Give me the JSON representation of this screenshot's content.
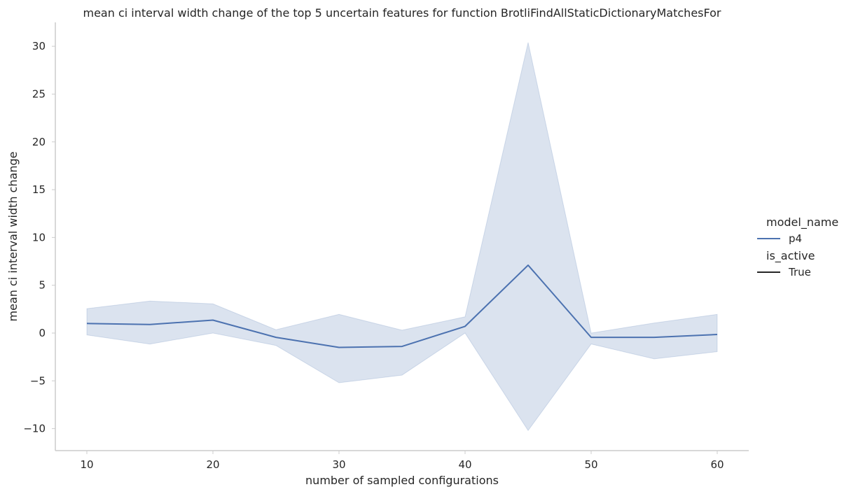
{
  "chart_data": {
    "type": "line",
    "title": "mean ci interval width change of the top 5 uncertain features for function BrotliFindAllStaticDictionaryMatchesFor",
    "xlabel": "number of sampled configurations",
    "ylabel": "mean ci interval width change",
    "xlim": [
      7.5,
      62.5
    ],
    "ylim": [
      -12.3,
      32.5
    ],
    "x_ticks": [
      10,
      20,
      30,
      40,
      50,
      60
    ],
    "y_ticks": [
      -10,
      -5,
      0,
      5,
      10,
      15,
      20,
      25,
      30
    ],
    "y_tick_labels": [
      "−10",
      "−5",
      "0",
      "5",
      "10",
      "15",
      "20",
      "25",
      "30"
    ],
    "grid": false,
    "legend_placement": "right",
    "series": [
      {
        "name": "p4",
        "color": "#4c72b0",
        "x": [
          10,
          15,
          20,
          25,
          30,
          35,
          40,
          45,
          50,
          55,
          60
        ],
        "y": [
          1.0,
          0.9,
          1.35,
          -0.45,
          -1.5,
          -1.4,
          0.7,
          7.1,
          -0.45,
          -0.45,
          -0.15
        ],
        "ci_lower": [
          -0.2,
          -1.15,
          0.0,
          -1.3,
          -5.2,
          -4.4,
          0.0,
          -10.2,
          -1.15,
          -2.7,
          -1.95
        ],
        "ci_upper": [
          2.55,
          3.35,
          3.05,
          0.35,
          1.95,
          0.3,
          1.7,
          30.4,
          0.0,
          1.05,
          1.95
        ]
      }
    ],
    "legend": {
      "hue_title": "model_name",
      "hue_entries": [
        {
          "label": "p4",
          "color": "#4c72b0"
        }
      ],
      "style_title": "is_active",
      "style_entries": [
        {
          "label": "True",
          "color": "#262626"
        }
      ]
    }
  }
}
